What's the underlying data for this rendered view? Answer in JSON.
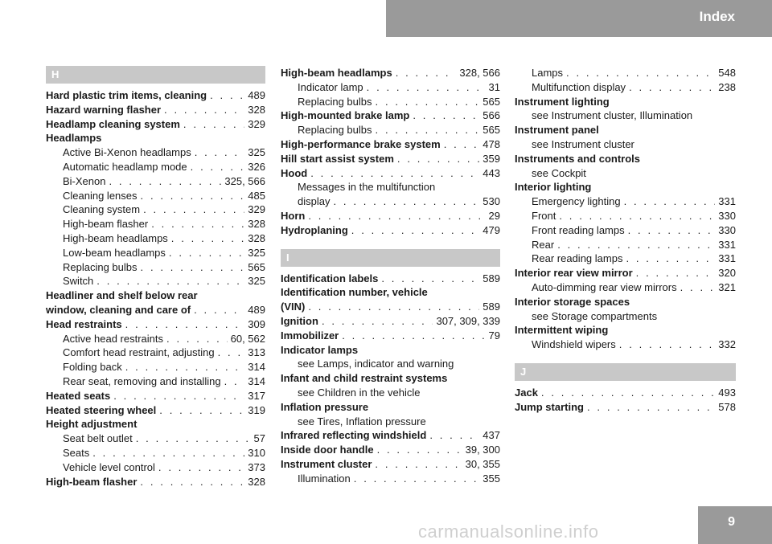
{
  "header": {
    "title": "Index"
  },
  "footer": {
    "page_number": "9",
    "watermark": "carmanualsonline.info"
  },
  "columns": [
    [
      {
        "kind": "section",
        "letter": "H"
      },
      {
        "kind": "entry",
        "level": "main",
        "term": "Hard plastic trim items, cleaning",
        "pages": "489"
      },
      {
        "kind": "entry",
        "level": "main",
        "term": "Hazard warning flasher",
        "pages": "328"
      },
      {
        "kind": "entry",
        "level": "main",
        "term": "Headlamp cleaning system",
        "pages": "329"
      },
      {
        "kind": "entry",
        "level": "main",
        "term": "Headlamps",
        "pages": ""
      },
      {
        "kind": "entry",
        "level": "sub",
        "term": "Active Bi-Xenon headlamps",
        "pages": "325"
      },
      {
        "kind": "entry",
        "level": "sub",
        "term": "Automatic headlamp mode",
        "pages": "326"
      },
      {
        "kind": "entry",
        "level": "sub",
        "term": "Bi-Xenon",
        "pages": "325, 566"
      },
      {
        "kind": "entry",
        "level": "sub",
        "term": "Cleaning lenses",
        "pages": "485"
      },
      {
        "kind": "entry",
        "level": "sub",
        "term": "Cleaning system",
        "pages": "329"
      },
      {
        "kind": "entry",
        "level": "sub",
        "term": "High-beam flasher",
        "pages": "328"
      },
      {
        "kind": "entry",
        "level": "sub",
        "term": "High-beam headlamps",
        "pages": "328"
      },
      {
        "kind": "entry",
        "level": "sub",
        "term": "Low-beam headlamps",
        "pages": "325"
      },
      {
        "kind": "entry",
        "level": "sub",
        "term": "Replacing bulbs",
        "pages": "565"
      },
      {
        "kind": "entry",
        "level": "sub",
        "term": "Switch",
        "pages": "325"
      },
      {
        "kind": "entry",
        "level": "main",
        "term": "Headliner and shelf below rear",
        "pages": ""
      },
      {
        "kind": "entry",
        "level": "main",
        "term": "window, cleaning and care of",
        "pages": "489"
      },
      {
        "kind": "entry",
        "level": "main",
        "term": "Head restraints",
        "pages": "309"
      },
      {
        "kind": "entry",
        "level": "sub",
        "term": "Active head restraints",
        "pages": "60, 562"
      },
      {
        "kind": "entry",
        "level": "sub",
        "term": "Comfort head restraint, adjusting",
        "pages": "313"
      },
      {
        "kind": "entry",
        "level": "sub",
        "term": "Folding back",
        "pages": "314"
      },
      {
        "kind": "entry",
        "level": "sub",
        "term": "Rear seat, removing and installing",
        "pages": "314"
      },
      {
        "kind": "entry",
        "level": "main",
        "term": "Heated seats",
        "pages": "317"
      },
      {
        "kind": "entry",
        "level": "main",
        "term": "Heated steering wheel",
        "pages": "319"
      },
      {
        "kind": "entry",
        "level": "main",
        "term": "Height adjustment",
        "pages": ""
      },
      {
        "kind": "entry",
        "level": "sub",
        "term": "Seat belt outlet",
        "pages": "57"
      },
      {
        "kind": "entry",
        "level": "sub",
        "term": "Seats",
        "pages": "310"
      },
      {
        "kind": "entry",
        "level": "sub",
        "term": "Vehicle level control",
        "pages": "373"
      },
      {
        "kind": "entry",
        "level": "main",
        "term": "High-beam flasher",
        "pages": "328"
      }
    ],
    [
      {
        "kind": "entry",
        "level": "main",
        "term": "High-beam headlamps",
        "pages": "328, 566"
      },
      {
        "kind": "entry",
        "level": "sub",
        "term": "Indicator lamp",
        "pages": "31"
      },
      {
        "kind": "entry",
        "level": "sub",
        "term": "Replacing bulbs",
        "pages": "565"
      },
      {
        "kind": "entry",
        "level": "main",
        "term": "High-mounted brake lamp",
        "pages": "566"
      },
      {
        "kind": "entry",
        "level": "sub",
        "term": "Replacing bulbs",
        "pages": "565"
      },
      {
        "kind": "entry",
        "level": "main",
        "term": "High-performance brake system",
        "pages": "478"
      },
      {
        "kind": "entry",
        "level": "main",
        "term": "Hill start assist system",
        "pages": "359"
      },
      {
        "kind": "entry",
        "level": "main",
        "term": "Hood",
        "pages": "443"
      },
      {
        "kind": "entry",
        "level": "sub",
        "term": "Messages in the multifunction",
        "pages": ""
      },
      {
        "kind": "entry",
        "level": "sub",
        "term": "display",
        "pages": "530"
      },
      {
        "kind": "entry",
        "level": "main",
        "term": "Horn",
        "pages": "29"
      },
      {
        "kind": "entry",
        "level": "main",
        "term": "Hydroplaning",
        "pages": "479"
      },
      {
        "kind": "spacer"
      },
      {
        "kind": "section",
        "letter": "I"
      },
      {
        "kind": "entry",
        "level": "main",
        "term": "Identification labels",
        "pages": "589"
      },
      {
        "kind": "entry",
        "level": "main",
        "term": "Identification number, vehicle",
        "pages": ""
      },
      {
        "kind": "entry",
        "level": "main",
        "term": "(VIN)",
        "pages": "589"
      },
      {
        "kind": "entry",
        "level": "main",
        "term": "Ignition",
        "pages": "307, 309, 339"
      },
      {
        "kind": "entry",
        "level": "main",
        "term": "Immobilizer",
        "pages": "79"
      },
      {
        "kind": "entry",
        "level": "main",
        "term": "Indicator lamps",
        "pages": ""
      },
      {
        "kind": "entry",
        "level": "sub",
        "term": "see Lamps, indicator and warning",
        "pages": ""
      },
      {
        "kind": "entry",
        "level": "main",
        "term": "Infant and child restraint systems",
        "pages": ""
      },
      {
        "kind": "entry",
        "level": "sub",
        "term": "see Children in the vehicle",
        "pages": ""
      },
      {
        "kind": "entry",
        "level": "main",
        "term": "Inflation pressure",
        "pages": ""
      },
      {
        "kind": "entry",
        "level": "sub",
        "term": "see Tires, Inflation pressure",
        "pages": ""
      },
      {
        "kind": "entry",
        "level": "main",
        "term": "Infrared reflecting windshield",
        "pages": "437"
      },
      {
        "kind": "entry",
        "level": "main",
        "term": "Inside door handle",
        "pages": "39, 300"
      },
      {
        "kind": "entry",
        "level": "main",
        "term": "Instrument cluster",
        "pages": "30, 355"
      },
      {
        "kind": "entry",
        "level": "sub",
        "term": "Illumination",
        "pages": "355"
      }
    ],
    [
      {
        "kind": "entry",
        "level": "sub",
        "term": "Lamps",
        "pages": "548"
      },
      {
        "kind": "entry",
        "level": "sub",
        "term": "Multifunction display",
        "pages": "238"
      },
      {
        "kind": "entry",
        "level": "main",
        "term": "Instrument lighting",
        "pages": ""
      },
      {
        "kind": "entry",
        "level": "sub",
        "term": "see Instrument cluster, Illumination",
        "pages": ""
      },
      {
        "kind": "entry",
        "level": "main",
        "term": "Instrument panel",
        "pages": ""
      },
      {
        "kind": "entry",
        "level": "sub",
        "term": "see Instrument cluster",
        "pages": ""
      },
      {
        "kind": "entry",
        "level": "main",
        "term": "Instruments and controls",
        "pages": ""
      },
      {
        "kind": "entry",
        "level": "sub",
        "term": "see Cockpit",
        "pages": ""
      },
      {
        "kind": "entry",
        "level": "main",
        "term": "Interior lighting",
        "pages": ""
      },
      {
        "kind": "entry",
        "level": "sub",
        "term": "Emergency lighting",
        "pages": "331"
      },
      {
        "kind": "entry",
        "level": "sub",
        "term": "Front",
        "pages": "330"
      },
      {
        "kind": "entry",
        "level": "sub",
        "term": "Front reading lamps",
        "pages": "330"
      },
      {
        "kind": "entry",
        "level": "sub",
        "term": "Rear",
        "pages": "331"
      },
      {
        "kind": "entry",
        "level": "sub",
        "term": "Rear reading lamps",
        "pages": "331"
      },
      {
        "kind": "entry",
        "level": "main",
        "term": "Interior rear view mirror",
        "pages": "320"
      },
      {
        "kind": "entry",
        "level": "sub",
        "term": "Auto-dimming rear view mirrors",
        "pages": "321"
      },
      {
        "kind": "entry",
        "level": "main",
        "term": "Interior storage spaces",
        "pages": ""
      },
      {
        "kind": "entry",
        "level": "sub",
        "term": "see Storage compartments",
        "pages": ""
      },
      {
        "kind": "entry",
        "level": "main",
        "term": "Intermittent wiping",
        "pages": ""
      },
      {
        "kind": "entry",
        "level": "sub",
        "term": "Windshield wipers",
        "pages": "332"
      },
      {
        "kind": "spacer"
      },
      {
        "kind": "section",
        "letter": "J"
      },
      {
        "kind": "entry",
        "level": "main",
        "term": "Jack",
        "pages": "493"
      },
      {
        "kind": "entry",
        "level": "main",
        "term": "Jump starting",
        "pages": "578"
      }
    ]
  ]
}
